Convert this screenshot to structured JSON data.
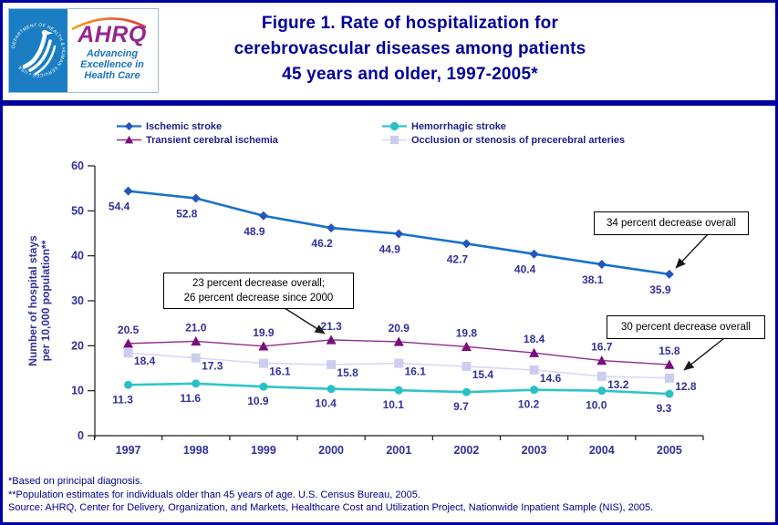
{
  "header": {
    "logo": {
      "seal_text": "DEPARTMENT OF HEALTH & HUMAN SERVICES • USA",
      "brand": "AHRQ",
      "tagline_lines": [
        "Advancing",
        "Excellence in",
        "Health Care"
      ]
    },
    "title_lines": [
      "Figure 1. Rate of hospitalization for",
      "cerebrovascular diseases among patients",
      "45 years and older, 1997-2005*"
    ]
  },
  "chart_data": {
    "type": "line",
    "title": "Figure 1. Rate of hospitalization for cerebrovascular diseases among patients 45 years and older, 1997-2005*",
    "categories": [
      "1997",
      "1998",
      "1999",
      "2000",
      "2001",
      "2002",
      "2003",
      "2004",
      "2005"
    ],
    "xlabel": "",
    "ylabel": "Number of hospital stays per 10,000 population**",
    "ylabel_lines": [
      "Number of hospital stays",
      "per 10,000 population**"
    ],
    "ylim": [
      0,
      60
    ],
    "yticks": [
      0,
      10,
      20,
      30,
      40,
      50,
      60
    ],
    "grid": false,
    "legend_position": "top",
    "series": [
      {
        "name": "Ischemic stroke",
        "marker": "diamond",
        "color": "#1871CD",
        "marker_color": "#2456BE",
        "values": [
          54.4,
          52.8,
          48.9,
          46.2,
          44.9,
          42.7,
          40.4,
          38.1,
          35.9
        ]
      },
      {
        "name": "Transient cerebral ischemia",
        "marker": "triangle",
        "color": "#8E2C90",
        "marker_color": "#7B0D7C",
        "values": [
          20.5,
          21.0,
          19.9,
          21.3,
          20.9,
          19.8,
          18.4,
          16.7,
          15.8
        ]
      },
      {
        "name": "Hemorrhagic stroke",
        "marker": "circle",
        "color": "#30C5C9",
        "marker_color": "#2BBFC6",
        "values": [
          11.3,
          11.6,
          10.9,
          10.4,
          10.1,
          9.7,
          10.2,
          10.0,
          9.3
        ]
      },
      {
        "name": "Occlusion or stenosis of precerebral arteries",
        "marker": "square",
        "color": "#D8D8F3",
        "marker_color": "#CDCDEF",
        "values": [
          18.4,
          17.3,
          16.1,
          15.8,
          16.1,
          15.4,
          14.6,
          13.2,
          12.8
        ]
      }
    ],
    "annotations": [
      {
        "lines": [
          "23 percent decrease overall;",
          "26 percent decrease since 2000"
        ],
        "points_to": {
          "series": "Transient cerebral ischemia",
          "category": "2000"
        }
      },
      {
        "lines": [
          "34 percent decrease overall"
        ],
        "points_to": {
          "series": "Ischemic stroke",
          "category": "2005"
        }
      },
      {
        "lines": [
          "30 percent decrease overall"
        ],
        "points_to": {
          "series": "Occlusion or stenosis of precerebral arteries",
          "category": "2005"
        }
      }
    ]
  },
  "footnotes": [
    "*Based on principal diagnosis.",
    "**Population estimates for individuals older than 45 years of age. U.S. Census Bureau, 2005.",
    "Source: AHRQ, Center for Delivery, Organization, and Markets, Healthcare Cost and Utilization Project, Nationwide Inpatient Sample (NIS), 2005."
  ],
  "colors": {
    "frame_border": "#0000A0",
    "title_text": "#000099",
    "axis_label_text": "#31319C",
    "legend_text": "#1F1F8B",
    "footnote_text": "#00008B",
    "annotation_border": "#000000",
    "arrow": "#1A1A1A",
    "hhs_blue": "#1B7EC2",
    "ahrq_purple": "#93278F",
    "tagline_blue": "#1A75BE"
  }
}
